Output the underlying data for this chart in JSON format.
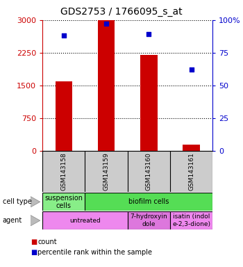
{
  "title": "GDS2753 / 1766095_s_at",
  "samples": [
    "GSM143158",
    "GSM143159",
    "GSM143160",
    "GSM143161"
  ],
  "counts": [
    1600,
    3000,
    2200,
    150
  ],
  "percentile_ranks": [
    88,
    97,
    89,
    62
  ],
  "ylim_left": [
    0,
    3000
  ],
  "ylim_right": [
    0,
    100
  ],
  "left_ticks": [
    0,
    750,
    1500,
    2250,
    3000
  ],
  "right_ticks": [
    0,
    25,
    50,
    75,
    100
  ],
  "bar_color": "#cc0000",
  "dot_color": "#0000cc",
  "cell_type_row": [
    {
      "label": "suspension\ncells",
      "color": "#88ee88",
      "span": 1
    },
    {
      "label": "biofilm cells",
      "color": "#55dd55",
      "span": 3
    }
  ],
  "agent_row": [
    {
      "label": "untreated",
      "color": "#ee88ee",
      "span": 2
    },
    {
      "label": "7-hydroxyin\ndole",
      "color": "#dd77dd",
      "span": 1
    },
    {
      "label": "isatin (indol\ne-2,3-dione)",
      "color": "#ee88ee",
      "span": 1
    }
  ],
  "left_tick_color": "#cc0000",
  "right_tick_color": "#0000cc",
  "background_color": "#ffffff",
  "sample_box_color": "#cccccc",
  "bar_width": 0.4,
  "dot_size": 25,
  "title_fontsize": 10,
  "tick_fontsize": 8,
  "label_fontsize": 7,
  "sample_fontsize": 6.5,
  "annotation_fontsize": 7
}
